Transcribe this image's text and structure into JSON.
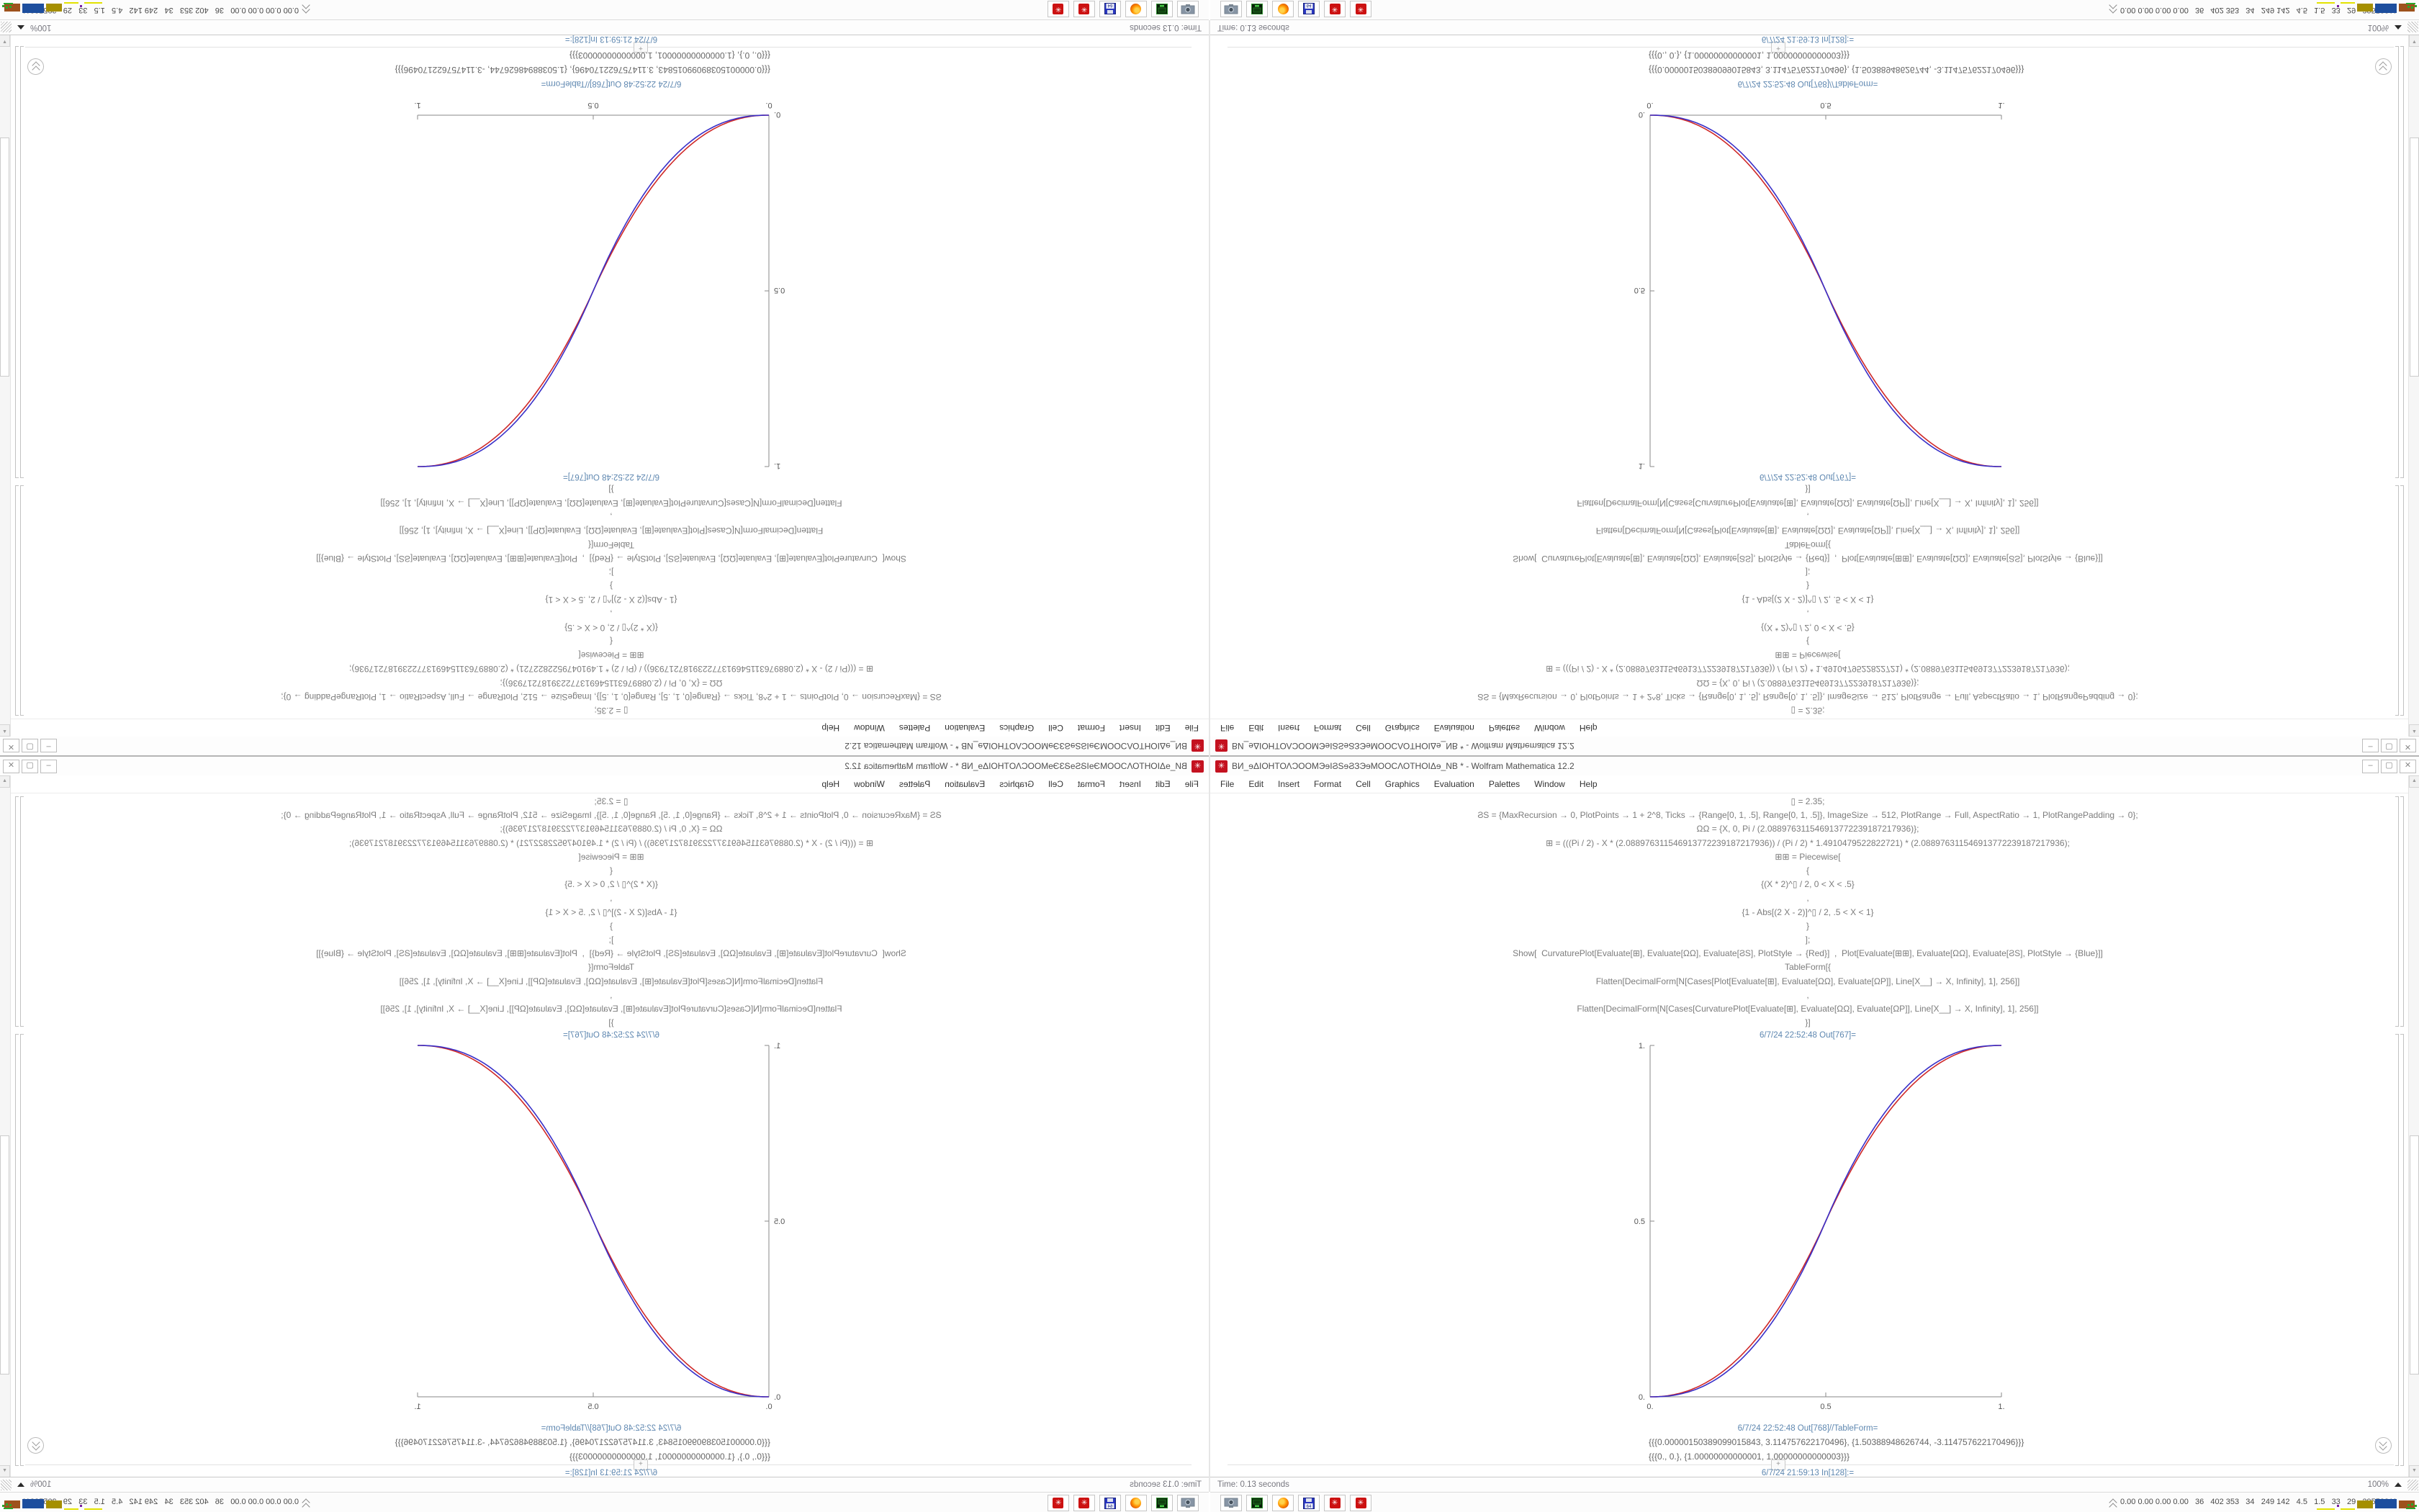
{
  "screen": {
    "description": "Four copies of the same maximized Wolfram Mathematica 12.2 desktop tiled 2x2 with mirror symmetry",
    "quadrants": [
      {
        "position": "top-left",
        "orientation": "rotated-180"
      },
      {
        "position": "top-right",
        "orientation": "flipped-vertical"
      },
      {
        "position": "bottom-left",
        "orientation": "flipped-horizontal"
      },
      {
        "position": "bottom-right",
        "orientation": "normal"
      }
    ]
  },
  "titlebar": {
    "icon": "mathematica-spikey-icon",
    "icon_glyph": "✳",
    "title": "ВИ_ɘΔΙΟΗΤΟΛϽΟΟΜЭɘΙϨSɘϨЗЭɘΜΟΟϹΛΟΤΗΟΙΔɘ_NB * - Wolfram Mathematica 12.2",
    "controls": {
      "minimize": "–",
      "maximize": "▢",
      "close": "✕"
    }
  },
  "menubar": {
    "items": [
      "File",
      "Edit",
      "Insert",
      "Format",
      "Cell",
      "Graphics",
      "Evaluation",
      "Palettes",
      "Window",
      "Help"
    ]
  },
  "notebook": {
    "code_lines": [
      "▯ = 2.35;",
      "ϨS = {MaxRecursion → 0, PlotPoints → 1 + 2^8, Ticks → {Range[0, 1, .5], Range[0, 1, .5]}, ImageSize → 512, PlotRange → Full, AspectRatio → 1, PlotRangePadding → 0};",
      "ΩΩ = {X, 0, Pi / (2.088976311546913772239187217936)};",
      "⊞ = (((Pi / 2) - X * (2.088976311546913772239187217936)) / (Pi / 2) * 1.4910479522822721) * (2.088976311546913772239187217936);",
      "⊞⊞ = Piecewise[",
      "{",
      "{(X * 2)^▯ / 2, 0 < X < .5}",
      ",",
      "{1 - Abs[(2 X - 2)]^▯ / 2, .5 < X < 1}",
      "}",
      "];",
      "Show[  CurvaturePlot[Evaluate[⊞], Evaluate[ΩΩ], Evaluate[ϨS], PlotStyle → {Red}]  ,  Plot[Evaluate[⊞⊞], Evaluate[ΩΩ], Evaluate[ϨS], PlotStyle → {Blue}]]",
      "TableForm[{",
      "Flatten[DecimalForm[N[Cases[Plot[Evaluate[⊞], Evaluate[ΩΩ], Evaluate[ΩΡ]], Line[X__] → X, Infinity], 1], 256]]",
      ",",
      "Flatten[DecimalForm[N[Cases[CurvaturePlot[Evaluate[⊞], Evaluate[ΩΩ], Evaluate[ΩΡ]], Line[X__] → X, Infinity], 1], 256]]",
      "}]"
    ],
    "cells": {
      "out_plot_label": "6/7/24 22:52:48 Out[767]=",
      "out_table_label": "6/7/24 22:52:48 Out[768]//TableForm=",
      "table_rows": [
        "{{{0.00000150389099015843, 3.114757622170496}, {1.50388948626744, -3.114757622170496}}}",
        "{{{0., 0.}, {1.00000000000001, 1.00000000000003}}}"
      ],
      "insert_plus": "+",
      "in_label": "6/7/24 21:59:13 In[128]:="
    }
  },
  "chart_data": {
    "type": "line",
    "title": "",
    "xlabel": "",
    "ylabel": "",
    "xlim": [
      0,
      1
    ],
    "ylim": [
      0,
      1
    ],
    "grid": false,
    "legend": "none",
    "axes_style": "left and bottom axes only, gray, ticks inward",
    "image_size": 512,
    "aspect_ratio": 1,
    "xticks": {
      "values": [
        0,
        0.5,
        1
      ],
      "labels": [
        "0.",
        "0.5",
        "1."
      ]
    },
    "yticks": {
      "values": [
        0,
        0.5,
        1
      ],
      "labels": [
        "0.",
        "0.5",
        "1."
      ]
    },
    "series": [
      {
        "name": "CurvaturePlot result (Red)",
        "color": "#cf2828",
        "style": "smoothstep_power",
        "gamma": 2.2
      },
      {
        "name": "Plot Piecewise[(2x)^2.35/2 | 1-|2x-2|^2.35/2] (Blue)",
        "color": "#3a30c8",
        "style": "smoothstep_power",
        "gamma": 2.35
      }
    ],
    "key_points": [
      [
        0,
        0
      ],
      [
        0.5,
        0.5
      ],
      [
        1,
        1
      ]
    ]
  },
  "statusbar": {
    "left": "Time: 0.13 seconds",
    "zoom": "100%"
  },
  "taskbar": {
    "icons": [
      "screen-capture-icon",
      "emulator-icon",
      "firefox-icon",
      "floppy-64-icon",
      "mathematica-taskbar-icon",
      "mathematica-taskbar-icon"
    ],
    "floppy_label": "64",
    "mathematica_glyph": "✳",
    "tray_numbers": "0.00 0.00 0.00 0.00   36   402 353   34   249 142   4.5   1.5   33   29   29553811",
    "tray_graph_colors": {
      "yellow": "#e2e200",
      "purple": "#7a1fa0",
      "olive": "#a58f00",
      "blue": "#1d4e9e",
      "brown": "#9e521d",
      "green": "#2aa62a"
    }
  }
}
